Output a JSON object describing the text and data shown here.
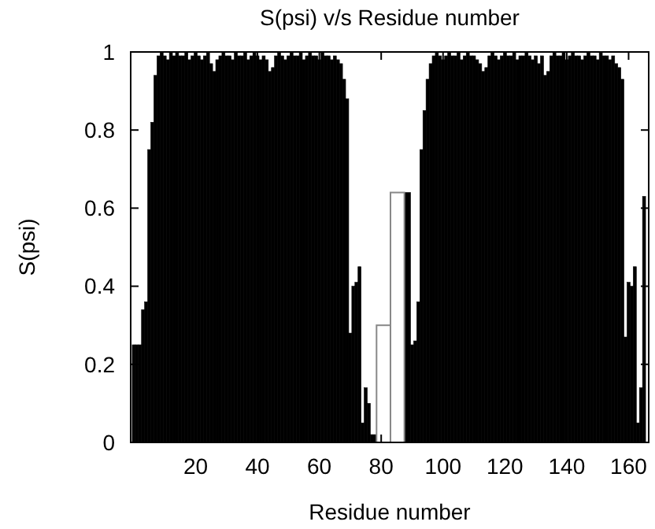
{
  "chart_data": {
    "type": "bar",
    "title": "S(psi) v/s Residue number",
    "xlabel": "Residue number",
    "ylabel": "S(psi)",
    "x": [
      0,
      1,
      2,
      3,
      4,
      5,
      6,
      7,
      8,
      9,
      10,
      11,
      12,
      13,
      14,
      15,
      16,
      17,
      18,
      19,
      20,
      21,
      22,
      23,
      24,
      25,
      26,
      27,
      28,
      29,
      30,
      31,
      32,
      33,
      34,
      35,
      36,
      37,
      38,
      39,
      40,
      41,
      42,
      43,
      44,
      45,
      46,
      47,
      48,
      49,
      50,
      51,
      52,
      53,
      54,
      55,
      56,
      57,
      58,
      59,
      60,
      61,
      62,
      63,
      64,
      65,
      66,
      67,
      68,
      69,
      70,
      71,
      72,
      73,
      74,
      75,
      76,
      77,
      80,
      86,
      89,
      90,
      91,
      92,
      93,
      94,
      95,
      96,
      97,
      98,
      99,
      100,
      101,
      102,
      103,
      104,
      105,
      106,
      107,
      108,
      109,
      110,
      111,
      112,
      113,
      114,
      115,
      116,
      117,
      118,
      119,
      120,
      121,
      122,
      123,
      124,
      125,
      126,
      127,
      128,
      129,
      130,
      131,
      132,
      133,
      134,
      135,
      136,
      137,
      138,
      139,
      140,
      141,
      142,
      143,
      144,
      145,
      146,
      147,
      148,
      149,
      150,
      151,
      152,
      153,
      154,
      155,
      156,
      157,
      158,
      159,
      160,
      161,
      162,
      163,
      164,
      165
    ],
    "series": [
      {
        "color": "#000000",
        "values": [
          0.25,
          0.25,
          0.25,
          0.34,
          0.36,
          0.75,
          0.82,
          0.94,
          0.99,
          1,
          0.99,
          0.98,
          1,
          0.99,
          1,
          0.99,
          0.99,
          1,
          0.98,
          0.99,
          1,
          0.99,
          0.98,
          0.99,
          1,
          0.97,
          0.95,
          0.98,
          0.99,
          1,
          0.99,
          0.99,
          0.98,
          1,
          0.99,
          0.99,
          1,
          0.98,
          0.99,
          1,
          0.99,
          0.98,
          0.99,
          0.98,
          0.95,
          0.96,
          0.99,
          1,
          0.99,
          0.98,
          0.99,
          1,
          0.99,
          0.99,
          1,
          0.98,
          0.99,
          1,
          0.99,
          0.99,
          0.98,
          1,
          0.99,
          0.99,
          0.98,
          0.99,
          0.98,
          0.97,
          0.93,
          0.88,
          0.28,
          0.4,
          0.41,
          0.45,
          0.05,
          0.14,
          0.1,
          0.02,
          null,
          null,
          0.64,
          0.25,
          0.26,
          0.36,
          0.75,
          0.85,
          0.93,
          0.97,
          0.99,
          1,
          0.99,
          0.98,
          0.99,
          1,
          0.99,
          0.99,
          1,
          0.98,
          0.99,
          1,
          0.99,
          0.99,
          0.98,
          0.97,
          0.95,
          0.96,
          0.99,
          1,
          0.99,
          0.98,
          0.99,
          1,
          0.99,
          0.99,
          1,
          0.98,
          0.99,
          0.99,
          1,
          0.99,
          0.98,
          0.99,
          0.97,
          0.99,
          0.94,
          0.95,
          0.99,
          1,
          0.99,
          0.99,
          1,
          0.98,
          0.99,
          1,
          0.99,
          0.99,
          0.98,
          0.99,
          1,
          0.99,
          0.99,
          0.98,
          1,
          0.99,
          0.99,
          0.98,
          0.99,
          0.97,
          0.96,
          0.93,
          0.27,
          0.41,
          0.4,
          0.45,
          0.05,
          0.14,
          0.63
        ]
      },
      {
        "color": "#ffffff",
        "values": [
          null,
          null,
          null,
          null,
          null,
          null,
          null,
          null,
          null,
          null,
          null,
          null,
          null,
          null,
          null,
          null,
          null,
          null,
          null,
          null,
          null,
          null,
          null,
          null,
          null,
          null,
          null,
          null,
          null,
          null,
          null,
          null,
          null,
          null,
          null,
          null,
          null,
          null,
          null,
          null,
          null,
          null,
          null,
          null,
          null,
          null,
          null,
          null,
          null,
          null,
          null,
          null,
          null,
          null,
          null,
          null,
          null,
          null,
          null,
          null,
          null,
          null,
          null,
          null,
          null,
          null,
          null,
          null,
          null,
          null,
          null,
          null,
          null,
          null,
          null,
          null,
          null,
          null,
          0.3,
          0.64,
          null,
          null,
          null,
          null,
          null,
          null,
          null,
          null,
          null,
          null,
          null,
          null,
          null,
          null,
          null,
          null,
          null,
          null,
          null,
          null,
          null,
          null,
          null,
          null,
          null,
          null,
          null,
          null,
          null,
          null,
          null,
          null,
          null,
          null,
          null,
          null,
          null,
          null,
          null,
          null,
          null,
          null,
          null,
          null,
          null,
          null,
          null,
          null,
          null,
          null,
          null,
          null,
          null,
          null,
          null,
          null,
          null,
          null,
          null,
          null,
          null,
          null,
          null,
          null,
          null,
          null,
          null,
          null,
          null,
          null,
          null,
          null,
          null,
          null,
          null,
          null,
          null
        ]
      }
    ],
    "xlim": [
      -1,
      166.5
    ],
    "xticks": [
      20,
      40,
      60,
      80,
      100,
      120,
      140,
      160
    ],
    "ylim": [
      0,
      1
    ],
    "yticks": [
      0,
      0.2,
      0.4,
      0.6,
      0.8,
      1
    ],
    "grid": false
  }
}
